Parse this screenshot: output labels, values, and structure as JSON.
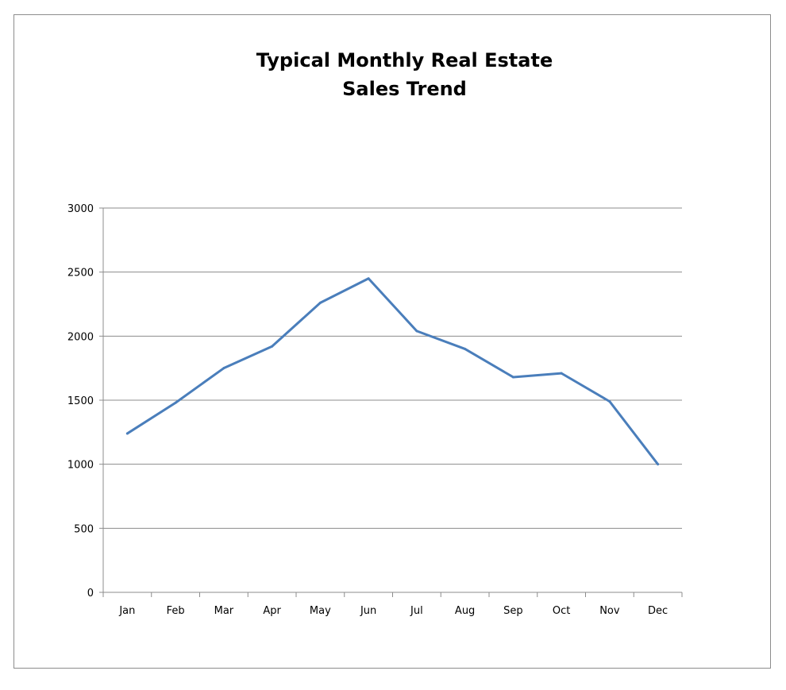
{
  "chart_data": {
    "type": "line",
    "title_lines": [
      "Typical Monthly Real Estate",
      "Sales Trend"
    ],
    "categories": [
      "Jan",
      "Feb",
      "Mar",
      "Apr",
      "May",
      "Jun",
      "Jul",
      "Aug",
      "Sep",
      "Oct",
      "Nov",
      "Dec"
    ],
    "series": [
      {
        "values": [
          1240,
          1480,
          1750,
          1920,
          2260,
          2450,
          2040,
          1900,
          1680,
          1710,
          1490,
          1000
        ],
        "color": "#4a7ebb"
      }
    ],
    "y_ticks": [
      "0",
      "500",
      "1000",
      "1500",
      "2000",
      "2500",
      "3000"
    ],
    "ylim": [
      0,
      3000
    ],
    "xlabel": "",
    "ylabel": "",
    "grid": true,
    "legend": "none"
  }
}
